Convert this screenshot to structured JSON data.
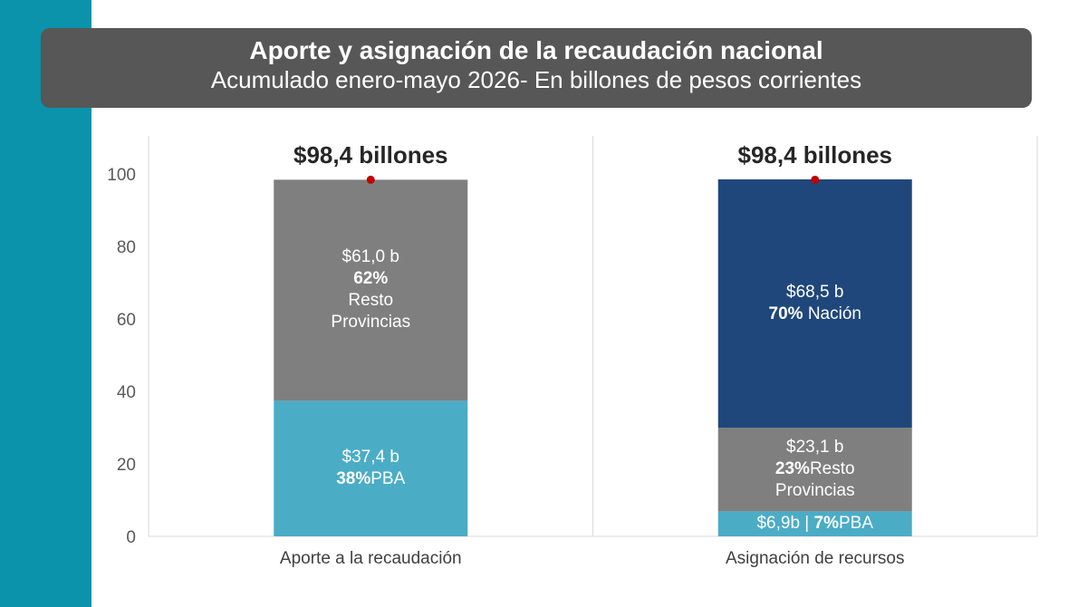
{
  "header": {
    "title": "Aporte y asignación de la recaudación nacional",
    "subtitle": "Acumulado enero-mayo 2026- En billones de pesos corrientes"
  },
  "colors": {
    "side_band": "#0a93ab",
    "header_bg": "#575757",
    "pba": "#4bacc6",
    "resto_provincias": "#7f7f7f",
    "nacion": "#1f477b",
    "total_marker": "#c00000"
  },
  "chart_data": {
    "type": "bar",
    "stacked": true,
    "categories": [
      "Aporte a la recaudación",
      "Asignación de recursos"
    ],
    "series": [
      {
        "key": "pba",
        "values": [
          37.4,
          6.9
        ]
      },
      {
        "key": "resto_provincias",
        "values": [
          61.0,
          23.1
        ]
      },
      {
        "key": "nacion",
        "values": [
          0,
          68.5
        ]
      }
    ],
    "totals": [
      98.4,
      98.4
    ],
    "total_labels": [
      "$98,4 billones",
      "$98,4 billones"
    ],
    "segment_labels": [
      [
        {
          "lines": [
            {
              "plain": "$37,4 b"
            },
            {
              "bold": "38%",
              "plain": "PBA"
            }
          ]
        },
        {
          "lines": [
            {
              "plain": "$61,0 b"
            },
            {
              "bold": "62%"
            },
            {
              "plain": "Resto"
            },
            {
              "plain": "Provincias"
            }
          ]
        }
      ],
      [
        {
          "lines": [
            {
              "plain": "$6,9b | ",
              "bold": "7%",
              "after": "PBA"
            }
          ]
        },
        {
          "lines": [
            {
              "plain": "$23,1 b"
            },
            {
              "bold": "23%",
              "plain": "Resto"
            },
            {
              "plain": "Provincias"
            }
          ]
        },
        {
          "lines": [
            {
              "plain": "$68,5 b"
            },
            {
              "bold": "70%",
              "plain": " Nación"
            }
          ]
        }
      ]
    ],
    "yticks": [
      "0",
      "20",
      "40",
      "60",
      "80",
      "100"
    ],
    "ylim": [
      0,
      110
    ],
    "grid": false
  }
}
